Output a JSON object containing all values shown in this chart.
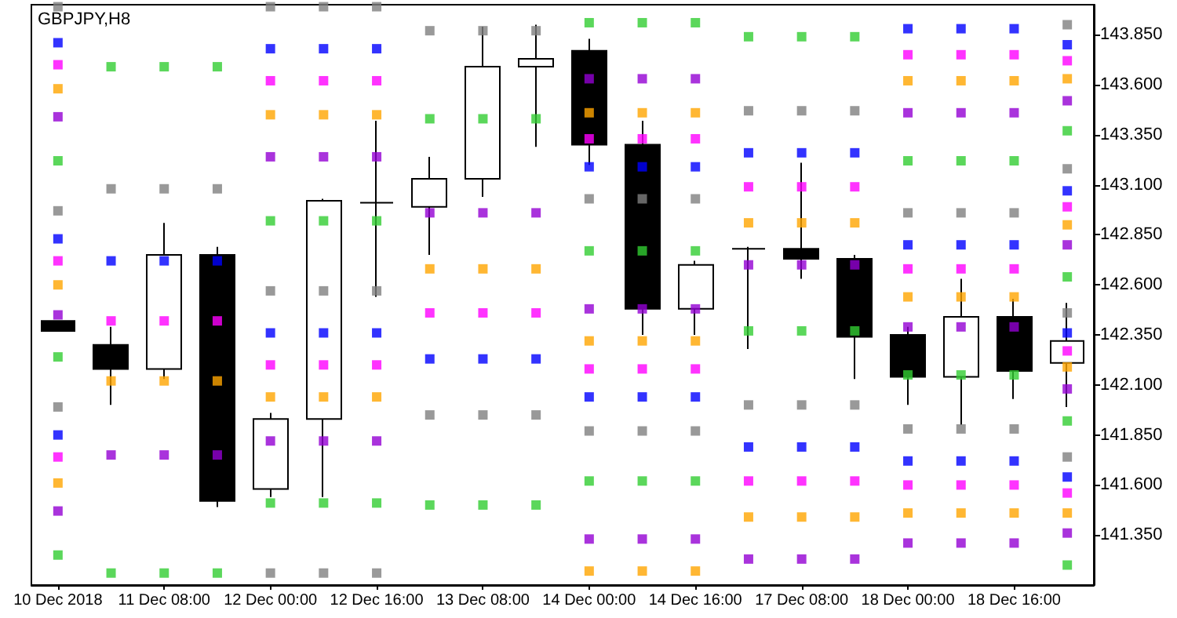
{
  "chart_data": {
    "type": "candlestick",
    "title": "GBPJPY,H8",
    "grid": false,
    "marker": "square",
    "categories": [
      "10 Dec 2018",
      null,
      "11 Dec 08:00",
      null,
      "12 Dec 00:00",
      null,
      "12 Dec 16:00",
      null,
      "13 Dec 08:00",
      null,
      "14 Dec 00:00",
      null,
      "14 Dec 16:00",
      null,
      "17 Dec 08:00",
      null,
      "18 Dec 00:00",
      null,
      "18 Dec 16:00",
      null
    ],
    "ylim": [
      141.1,
      144.0
    ],
    "yticks": [
      {
        "value": 141.35,
        "label": "141.350"
      },
      {
        "value": 141.6,
        "label": "141.600"
      },
      {
        "value": 141.85,
        "label": "141.850"
      },
      {
        "value": 142.1,
        "label": "142.100"
      },
      {
        "value": 142.35,
        "label": "142.350"
      },
      {
        "value": 142.6,
        "label": "142.600"
      },
      {
        "value": 142.85,
        "label": "142.850"
      },
      {
        "value": 143.1,
        "label": "143.100"
      },
      {
        "value": 143.35,
        "label": "143.350"
      },
      {
        "value": 143.6,
        "label": "143.600"
      },
      {
        "value": 143.85,
        "label": "143.850"
      }
    ],
    "ohlc": [
      [
        142.42,
        142.42,
        142.37,
        142.37
      ],
      [
        142.3,
        142.39,
        142.0,
        142.18
      ],
      [
        142.18,
        142.91,
        142.13,
        142.75
      ],
      [
        142.75,
        142.79,
        141.49,
        141.52
      ],
      [
        141.58,
        141.96,
        141.54,
        141.93
      ],
      [
        141.93,
        143.03,
        141.54,
        143.02
      ],
      [
        143.01,
        143.42,
        142.54,
        143.01
      ],
      [
        142.99,
        143.24,
        142.75,
        143.13
      ],
      [
        143.13,
        143.89,
        143.04,
        143.69
      ],
      [
        143.69,
        143.9,
        143.29,
        143.73
      ],
      [
        143.77,
        143.83,
        143.2,
        143.3
      ],
      [
        143.3,
        143.42,
        142.35,
        142.48
      ],
      [
        142.48,
        142.72,
        142.35,
        142.7
      ],
      [
        142.78,
        142.79,
        142.28,
        142.78
      ],
      [
        142.78,
        143.21,
        142.63,
        142.73
      ],
      [
        142.73,
        142.75,
        142.13,
        142.34
      ],
      [
        142.35,
        142.39,
        142.0,
        142.14
      ],
      [
        142.14,
        142.63,
        141.9,
        142.44
      ],
      [
        142.44,
        142.53,
        142.03,
        142.17
      ],
      [
        142.21,
        142.51,
        141.99,
        142.32
      ]
    ],
    "series": [
      {
        "type": "scatter",
        "color": "#808080",
        "values": [
          143.99,
          143.08,
          143.08,
          143.08,
          143.99,
          143.99,
          143.99,
          143.87,
          143.87,
          143.87,
          143.03,
          143.03,
          143.03,
          143.47,
          143.47,
          143.47,
          142.96,
          142.96,
          142.96,
          143.9
        ]
      },
      {
        "type": "scatter",
        "color": "#808080",
        "values": [
          142.97,
          null,
          null,
          null,
          142.57,
          142.57,
          142.57,
          141.95,
          141.95,
          141.95,
          141.87,
          141.87,
          141.87,
          142.0,
          142.0,
          142.0,
          141.88,
          141.88,
          141.88,
          143.18
        ]
      },
      {
        "type": "scatter",
        "color": "#808080",
        "values": [
          141.99,
          null,
          null,
          null,
          141.16,
          141.16,
          141.16,
          null,
          null,
          null,
          null,
          null,
          null,
          null,
          null,
          null,
          null,
          null,
          null,
          142.46
        ]
      },
      {
        "type": "scatter",
        "color": "#808080",
        "values": [
          null,
          null,
          null,
          null,
          null,
          null,
          null,
          null,
          null,
          null,
          null,
          null,
          null,
          null,
          null,
          null,
          null,
          null,
          null,
          141.74
        ]
      },
      {
        "type": "scatter",
        "color": "#0000ff",
        "values": [
          143.81,
          142.72,
          142.72,
          142.72,
          143.78,
          143.78,
          143.78,
          142.23,
          142.23,
          142.23,
          143.19,
          143.19,
          143.19,
          143.26,
          143.26,
          143.26,
          143.88,
          143.88,
          143.88,
          143.8
        ]
      },
      {
        "type": "scatter",
        "color": "#0000ff",
        "values": [
          142.83,
          null,
          null,
          null,
          142.36,
          142.36,
          142.36,
          null,
          null,
          null,
          142.04,
          142.04,
          142.04,
          141.79,
          141.79,
          141.79,
          142.8,
          142.8,
          142.8,
          143.07
        ]
      },
      {
        "type": "scatter",
        "color": "#0000ff",
        "values": [
          141.85,
          null,
          null,
          null,
          null,
          null,
          null,
          null,
          null,
          null,
          null,
          null,
          null,
          null,
          null,
          null,
          141.72,
          141.72,
          141.72,
          142.36
        ]
      },
      {
        "type": "scatter",
        "color": "#0000ff",
        "values": [
          null,
          null,
          null,
          null,
          null,
          null,
          null,
          null,
          null,
          null,
          null,
          null,
          null,
          null,
          null,
          null,
          null,
          null,
          null,
          141.64
        ]
      },
      {
        "type": "scatter",
        "color": "#ff00ff",
        "values": [
          143.7,
          142.42,
          142.42,
          142.42,
          143.62,
          143.62,
          143.62,
          142.46,
          142.46,
          142.46,
          143.33,
          143.33,
          143.33,
          143.09,
          143.09,
          143.09,
          143.75,
          143.75,
          143.75,
          143.72
        ]
      },
      {
        "type": "scatter",
        "color": "#ff00ff",
        "values": [
          142.72,
          null,
          null,
          null,
          142.2,
          142.2,
          142.2,
          null,
          null,
          null,
          142.18,
          142.18,
          142.18,
          141.62,
          141.62,
          141.62,
          142.68,
          142.68,
          142.68,
          142.99
        ]
      },
      {
        "type": "scatter",
        "color": "#ff00ff",
        "values": [
          141.74,
          null,
          null,
          null,
          null,
          null,
          null,
          null,
          null,
          null,
          null,
          null,
          null,
          null,
          null,
          null,
          141.6,
          141.6,
          141.6,
          142.27
        ]
      },
      {
        "type": "scatter",
        "color": "#ff00ff",
        "values": [
          null,
          null,
          null,
          null,
          null,
          null,
          null,
          null,
          null,
          null,
          null,
          null,
          null,
          null,
          null,
          null,
          null,
          null,
          null,
          141.56
        ]
      },
      {
        "type": "scatter",
        "color": "#ffa500",
        "values": [
          143.58,
          142.12,
          142.12,
          142.12,
          143.45,
          143.45,
          143.45,
          142.68,
          142.68,
          142.68,
          143.46,
          143.46,
          143.46,
          142.91,
          142.91,
          142.91,
          143.62,
          143.62,
          143.62,
          143.63
        ]
      },
      {
        "type": "scatter",
        "color": "#ffa500",
        "values": [
          142.6,
          null,
          null,
          null,
          142.04,
          142.04,
          142.04,
          null,
          null,
          null,
          142.32,
          142.32,
          142.32,
          141.44,
          141.44,
          141.44,
          142.54,
          142.54,
          142.54,
          142.9
        ]
      },
      {
        "type": "scatter",
        "color": "#ffa500",
        "values": [
          141.61,
          null,
          null,
          null,
          null,
          null,
          null,
          null,
          null,
          null,
          141.17,
          141.17,
          141.17,
          null,
          null,
          null,
          141.46,
          141.46,
          141.46,
          142.19
        ]
      },
      {
        "type": "scatter",
        "color": "#ffa500",
        "values": [
          null,
          null,
          null,
          null,
          null,
          null,
          null,
          null,
          null,
          null,
          null,
          null,
          null,
          null,
          null,
          null,
          null,
          null,
          null,
          141.46
        ]
      },
      {
        "type": "scatter",
        "color": "#9400d3",
        "values": [
          143.44,
          141.75,
          141.75,
          141.75,
          143.24,
          143.24,
          143.24,
          142.96,
          142.96,
          142.96,
          143.63,
          143.63,
          143.63,
          142.7,
          142.7,
          142.7,
          143.46,
          143.46,
          143.46,
          143.52
        ]
      },
      {
        "type": "scatter",
        "color": "#9400d3",
        "values": [
          142.45,
          null,
          null,
          null,
          141.82,
          141.82,
          141.82,
          null,
          null,
          null,
          142.48,
          142.48,
          142.48,
          141.23,
          141.23,
          141.23,
          142.39,
          142.39,
          142.39,
          142.8
        ]
      },
      {
        "type": "scatter",
        "color": "#9400d3",
        "values": [
          141.47,
          null,
          null,
          null,
          null,
          null,
          null,
          null,
          null,
          null,
          141.33,
          141.33,
          141.33,
          null,
          null,
          null,
          141.31,
          141.31,
          141.31,
          142.08
        ]
      },
      {
        "type": "scatter",
        "color": "#9400d3",
        "values": [
          null,
          null,
          null,
          null,
          null,
          null,
          null,
          null,
          null,
          null,
          null,
          null,
          null,
          null,
          null,
          null,
          null,
          null,
          null,
          141.36
        ]
      },
      {
        "type": "scatter",
        "color": "#32cd32",
        "values": [
          143.22,
          143.69,
          143.69,
          143.69,
          142.92,
          142.92,
          142.92,
          143.43,
          143.43,
          143.43,
          143.91,
          143.91,
          143.91,
          143.84,
          143.84,
          143.84,
          143.22,
          143.22,
          143.22,
          143.37
        ]
      },
      {
        "type": "scatter",
        "color": "#32cd32",
        "values": [
          142.24,
          141.16,
          141.16,
          141.16,
          141.51,
          141.51,
          141.51,
          141.5,
          141.5,
          141.5,
          142.77,
          142.77,
          142.77,
          142.37,
          142.37,
          142.37,
          142.15,
          142.15,
          142.15,
          142.64
        ]
      },
      {
        "type": "scatter",
        "color": "#32cd32",
        "values": [
          141.25,
          null,
          null,
          null,
          null,
          null,
          null,
          null,
          null,
          null,
          141.62,
          141.62,
          141.62,
          null,
          null,
          null,
          null,
          null,
          null,
          141.92
        ]
      },
      {
        "type": "scatter",
        "color": "#32cd32",
        "values": [
          null,
          null,
          null,
          null,
          null,
          null,
          null,
          null,
          null,
          null,
          null,
          null,
          null,
          null,
          null,
          null,
          null,
          null,
          null,
          141.2
        ]
      }
    ]
  }
}
